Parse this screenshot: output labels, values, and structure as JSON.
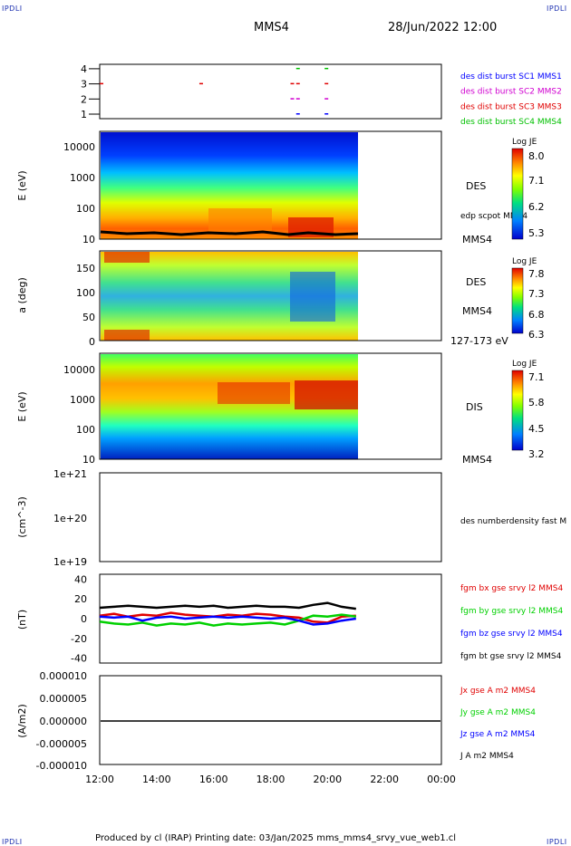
{
  "corner_label": "IPDLI",
  "header": {
    "spacecraft": "MMS4",
    "datetime": "28/Jun/2022 12:00"
  },
  "footer": "Produced by cl (IRAP)   Printing date: 03/Jan/2025   mms_mms4_srvy_vue_web1.cl",
  "colors": {
    "mms1": "#0000ff",
    "mms2": "#d000d0",
    "mms3": "#e00000",
    "mms4": "#00c000"
  },
  "chart_data": [
    {
      "type": "scatter",
      "panel": "burst-availability",
      "y_ticks": [
        "4",
        "3",
        "2",
        "1"
      ],
      "legend": [
        {
          "text": "des dist burst SC1 MMS1",
          "color": "#0000ff"
        },
        {
          "text": "des dist burst SC2 MMS2",
          "color": "#d000d0"
        },
        {
          "text": "des dist burst SC3 MMS3",
          "color": "#e00000"
        },
        {
          "text": "des dist burst SC4 MMS4",
          "color": "#00c000"
        }
      ],
      "series": [
        {
          "name": "des dist burst SC1 MMS1",
          "level": 1,
          "x": [
            18.9,
            19.9
          ]
        },
        {
          "name": "des dist burst SC2 MMS2",
          "level": 2,
          "x": [
            18.7,
            18.9,
            19.9
          ]
        },
        {
          "name": "des dist burst SC3 MMS3",
          "level": 3,
          "x": [
            12.0,
            15.5,
            18.7,
            18.9,
            19.9
          ]
        },
        {
          "name": "des dist burst SC4 MMS4",
          "level": 4,
          "x": [
            18.9,
            19.9
          ]
        }
      ]
    },
    {
      "type": "heatmap",
      "panel": "des-energy",
      "ylabel": "E (eV)",
      "y_ticks": [
        "10000",
        "1000",
        "100",
        "10"
      ],
      "instrument": "DES",
      "overlay": "edp scpot MMS4",
      "spacecraft": "MMS4",
      "colorbar": {
        "title": "Log JE",
        "ticks": [
          "8.0",
          "7.1",
          "6.2",
          "5.3"
        ]
      }
    },
    {
      "type": "heatmap",
      "panel": "des-pitch-angle",
      "ylabel": "a (deg)",
      "y_ticks": [
        "150",
        "100",
        "50",
        "0"
      ],
      "instrument": "DES",
      "spacecraft": "MMS4",
      "energy_range": "127-173 eV",
      "colorbar": {
        "title": "Log JE",
        "ticks": [
          "7.8",
          "7.3",
          "6.8",
          "6.3"
        ]
      }
    },
    {
      "type": "heatmap",
      "panel": "dis-energy",
      "ylabel": "E (eV)",
      "y_ticks": [
        "10000",
        "1000",
        "100",
        "10"
      ],
      "instrument": "DIS",
      "spacecraft": "MMS4",
      "colorbar": {
        "title": "Log JE",
        "ticks": [
          "7.1",
          "5.8",
          "4.5",
          "3.2"
        ]
      }
    },
    {
      "type": "line",
      "panel": "density",
      "ylabel": "(cm^-3)",
      "y_ticks": [
        "1e+21",
        "1e+20",
        "1e+19"
      ],
      "legend": [
        {
          "text": "des numberdensity fast M",
          "color": "#000000"
        }
      ]
    },
    {
      "type": "line",
      "panel": "magnetic-field",
      "ylabel": "(nT)",
      "y_ticks": [
        "40",
        "20",
        "0",
        "-20",
        "-40"
      ],
      "ylim": [
        -45,
        45
      ],
      "x": [
        12.0,
        12.5,
        13.0,
        13.5,
        14.0,
        14.5,
        15.0,
        15.5,
        16.0,
        16.5,
        17.0,
        17.5,
        18.0,
        18.5,
        19.0,
        19.5,
        20.0,
        20.5,
        21.0
      ],
      "series": [
        {
          "name": "fgm bx gse srvy l2 MMS4",
          "color": "#e00000",
          "values": [
            3,
            5,
            2,
            4,
            3,
            6,
            4,
            3,
            2,
            4,
            3,
            5,
            4,
            2,
            1,
            -3,
            -4,
            2,
            3
          ]
        },
        {
          "name": "fgm by gse srvy l2 MMS4",
          "color": "#00d000",
          "values": [
            -3,
            -5,
            -6,
            -4,
            -7,
            -5,
            -6,
            -4,
            -7,
            -5,
            -6,
            -5,
            -4,
            -6,
            -2,
            3,
            2,
            4,
            2
          ]
        },
        {
          "name": "fgm bz gse srvy l2 MMS4",
          "color": "#0000ff",
          "values": [
            2,
            1,
            2,
            -2,
            1,
            2,
            0,
            1,
            2,
            1,
            2,
            1,
            0,
            1,
            -2,
            -6,
            -5,
            -2,
            0
          ]
        },
        {
          "name": "fgm bt gse srvy l2 MMS4",
          "color": "#000000",
          "values": [
            11,
            12,
            13,
            12,
            11,
            12,
            13,
            12,
            13,
            11,
            12,
            13,
            12,
            12,
            11,
            14,
            16,
            12,
            10
          ]
        }
      ]
    },
    {
      "type": "line",
      "panel": "current-density",
      "ylabel": "(A/m2)",
      "y_ticks": [
        "0.000010",
        "0.000005",
        "0.000000",
        "-0.000005",
        "-0.000010"
      ],
      "ylim": [
        -1e-05,
        1e-05
      ],
      "x_ticks": [
        "12:00",
        "14:00",
        "16:00",
        "18:00",
        "20:00",
        "22:00",
        "00:00"
      ],
      "series": [
        {
          "name": "Jx gse A m2 MMS4",
          "color": "#e00000"
        },
        {
          "name": "Jy gse A m2 MMS4",
          "color": "#00d000"
        },
        {
          "name": "Jz gse A m2 MMS4",
          "color": "#0000ff"
        },
        {
          "name": "J A m2 MMS4",
          "color": "#000000"
        }
      ]
    }
  ]
}
